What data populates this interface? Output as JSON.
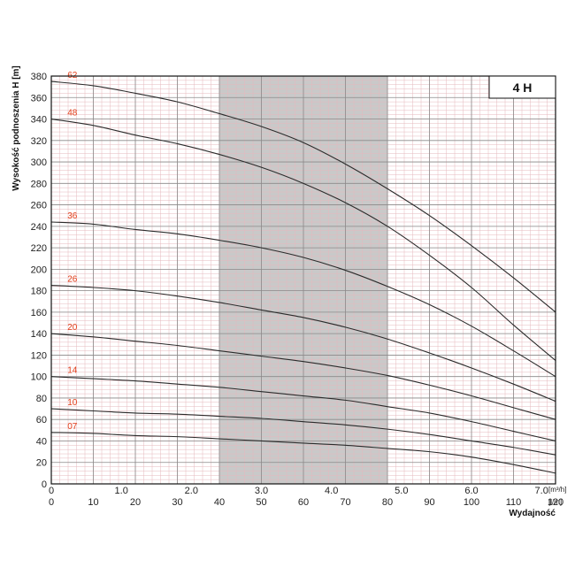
{
  "chart_data": {
    "type": "line",
    "title": "4 H",
    "ylabel": "Wysokość podnoszenia H [m]",
    "xlabel": "Wydajność",
    "x_unit_top": "[m³/h]",
    "x_unit_bottom": "[l/m]",
    "ylim": [
      0,
      380
    ],
    "xlim_m3h": [
      0,
      7.2
    ],
    "xlim_lmin": [
      0,
      120
    ],
    "y_ticks": [
      0,
      20,
      40,
      60,
      80,
      100,
      120,
      140,
      160,
      180,
      200,
      220,
      240,
      260,
      280,
      300,
      320,
      340,
      360,
      380
    ],
    "x_ticks_m3h": [
      "0",
      "1.0",
      "2.0",
      "3.0",
      "4.0",
      "5.0",
      "6.0",
      "7.0"
    ],
    "x_ticks_m3h_values": [
      0,
      1,
      2,
      3,
      4,
      5,
      6,
      7
    ],
    "x_ticks_lmin": [
      0,
      10,
      20,
      30,
      40,
      50,
      60,
      70,
      80,
      90,
      100,
      110,
      120
    ],
    "shaded_region_lmin": [
      40,
      80
    ],
    "series": [
      {
        "name": "62",
        "x": [
          0,
          10,
          20,
          30,
          40,
          50,
          60,
          70,
          80,
          90,
          100,
          110,
          120
        ],
        "y": [
          375,
          371,
          364,
          356,
          345,
          333,
          318,
          298,
          275,
          250,
          222,
          192,
          160
        ]
      },
      {
        "name": "48",
        "x": [
          0,
          10,
          20,
          30,
          40,
          50,
          60,
          70,
          80,
          90,
          100,
          110,
          120
        ],
        "y": [
          340,
          334,
          325,
          317,
          307,
          295,
          280,
          262,
          240,
          213,
          183,
          148,
          115
        ]
      },
      {
        "name": "36",
        "x": [
          0,
          10,
          20,
          30,
          40,
          50,
          60,
          70,
          80,
          90,
          100,
          110,
          120
        ],
        "y": [
          244,
          242,
          237,
          233,
          227,
          220,
          211,
          199,
          184,
          167,
          147,
          124,
          100
        ]
      },
      {
        "name": "26",
        "x": [
          0,
          10,
          20,
          30,
          40,
          50,
          60,
          70,
          80,
          90,
          100,
          110,
          120
        ],
        "y": [
          185,
          183,
          180,
          175,
          169,
          162,
          155,
          146,
          135,
          122,
          108,
          93,
          77
        ]
      },
      {
        "name": "20",
        "x": [
          0,
          10,
          20,
          30,
          40,
          50,
          60,
          70,
          80,
          90,
          100,
          110,
          120
        ],
        "y": [
          140,
          137,
          133,
          129,
          124,
          119,
          114,
          108,
          101,
          92,
          82,
          71,
          60
        ]
      },
      {
        "name": "14",
        "x": [
          0,
          10,
          20,
          30,
          40,
          50,
          60,
          70,
          80,
          90,
          100,
          110,
          120
        ],
        "y": [
          100,
          98,
          96,
          93,
          90,
          86,
          82,
          78,
          72,
          66,
          58,
          49,
          40
        ]
      },
      {
        "name": "10",
        "x": [
          0,
          10,
          20,
          30,
          40,
          50,
          60,
          70,
          80,
          90,
          100,
          110,
          120
        ],
        "y": [
          70,
          68,
          66,
          65,
          63,
          61,
          58,
          55,
          51,
          46,
          40,
          34,
          27
        ]
      },
      {
        "name": "07",
        "x": [
          0,
          10,
          20,
          30,
          40,
          50,
          60,
          70,
          80,
          90,
          100,
          110,
          120
        ],
        "y": [
          48,
          47,
          45,
          44,
          42,
          40,
          38,
          36,
          33,
          30,
          25,
          18,
          10
        ]
      }
    ],
    "grid": true,
    "colors": {
      "curve": "#2b2b2b",
      "label": "#e2401c",
      "shade": "#c9c9c9",
      "grid_major": "#8a8a8a",
      "grid_minor": "#e6b8bd"
    }
  }
}
